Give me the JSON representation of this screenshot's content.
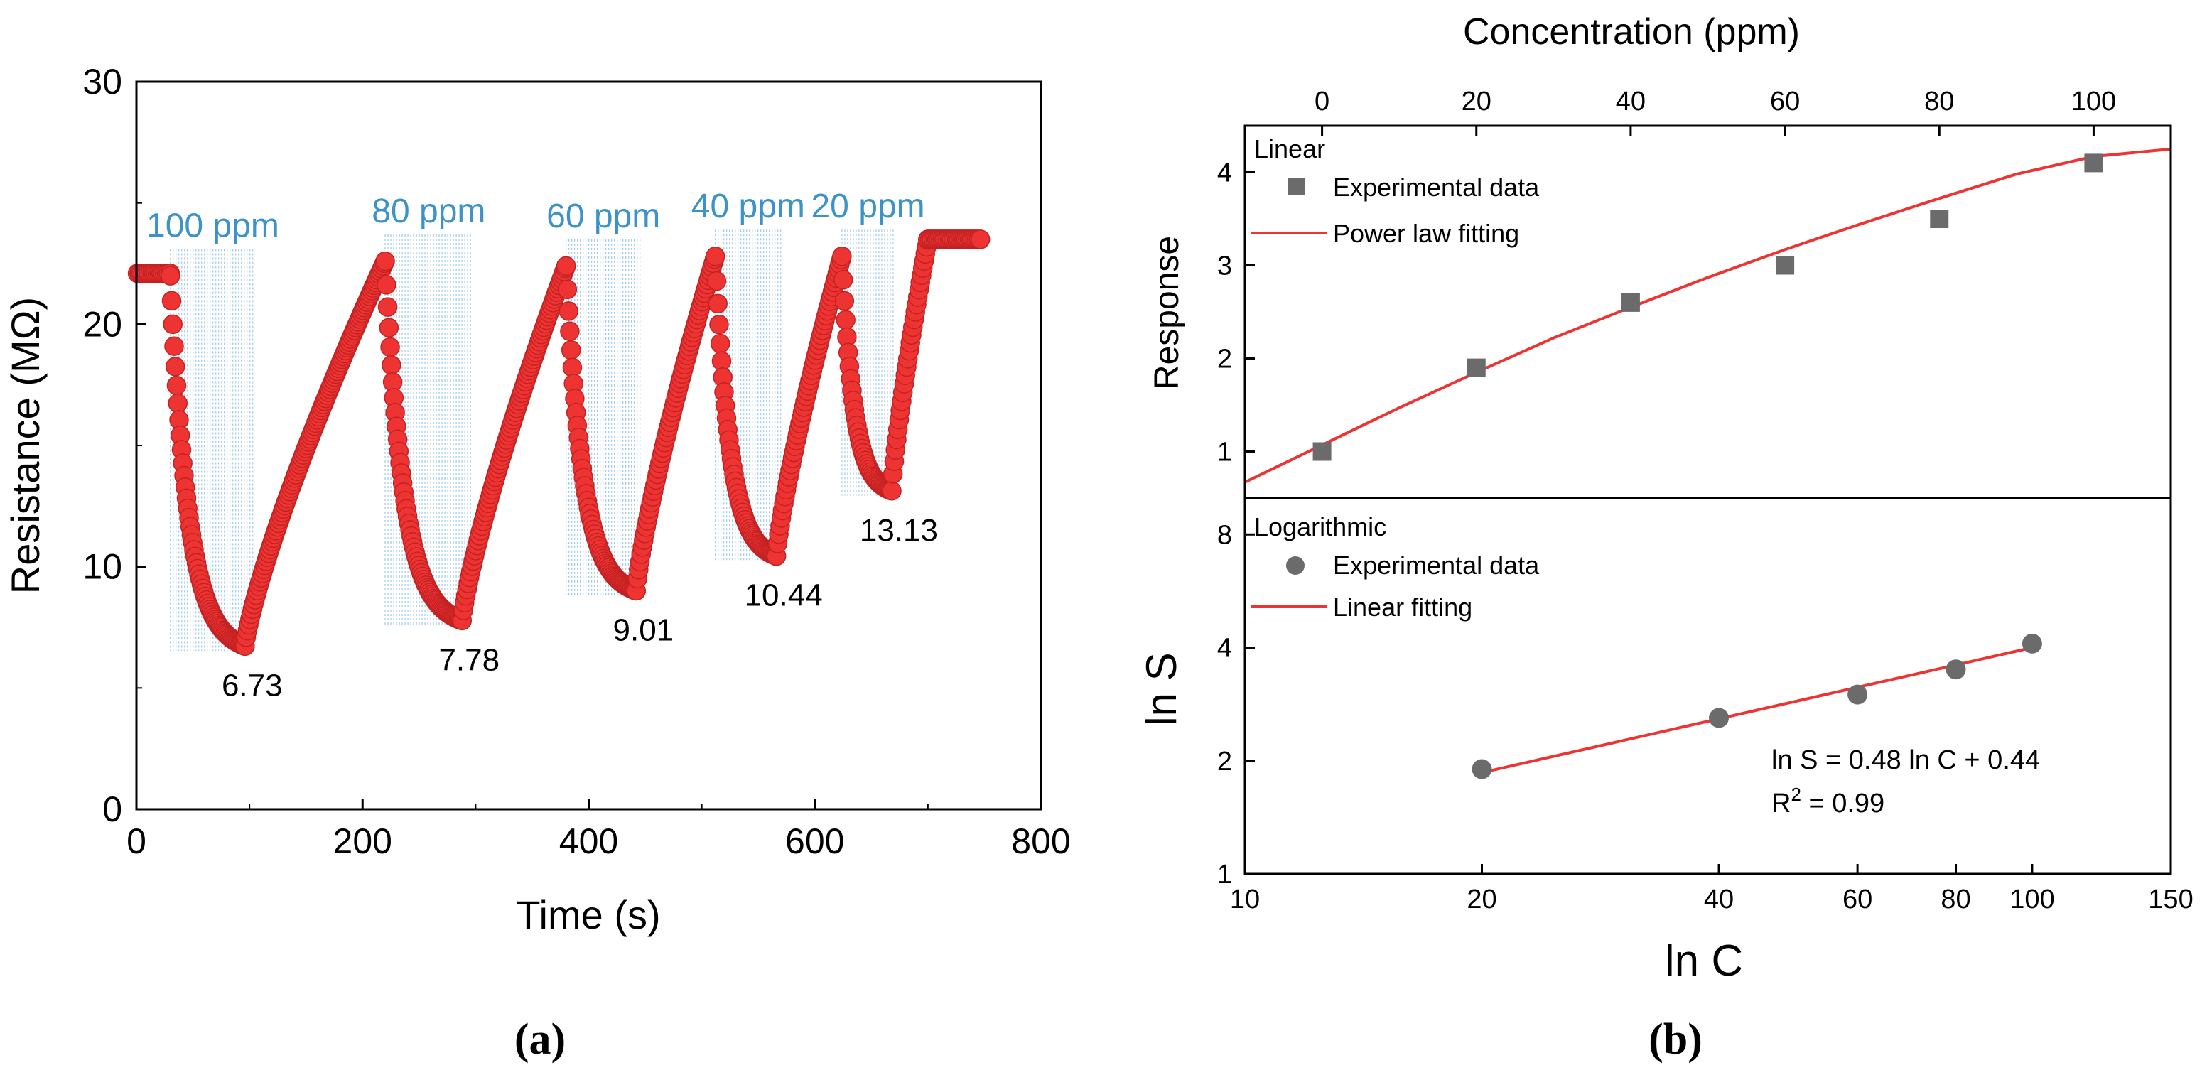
{
  "colors": {
    "curve": "#ee3333",
    "curve_edge": "#c42222",
    "shade": "#9cc8ea",
    "label_blue": "#3d93c8",
    "square": "#6b6b6b",
    "fit_line": "#ee3333",
    "axis": "#000000"
  },
  "panel_a": {
    "caption": "(a)",
    "chart_data": {
      "type": "scatter",
      "title": "",
      "xlabel": "Time (s)",
      "ylabel": "Resistance (MΩ)",
      "xlim": [
        0,
        800
      ],
      "ylim": [
        0,
        30
      ],
      "x_ticks": [
        "0",
        "200",
        "400",
        "600",
        "800"
      ],
      "y_ticks": [
        "0",
        "10",
        "20",
        "30"
      ],
      "cycles": [
        {
          "label": "100 ppm",
          "on": 30,
          "off": 105,
          "on_value": 22.0,
          "min": 6.73,
          "min_time": 96,
          "peak_time": 220,
          "peak_value": 22.6,
          "min_label": "6.73"
        },
        {
          "label": "80 ppm",
          "on": 220,
          "off": 297,
          "on_value": 22.6,
          "min": 7.78,
          "min_time": 288,
          "peak_time": 380,
          "peak_value": 22.4,
          "min_label": "7.78"
        },
        {
          "label": "60 ppm",
          "on": 380,
          "off": 446,
          "on_value": 22.4,
          "min": 9.01,
          "min_time": 442,
          "peak_time": 512,
          "peak_value": 22.8,
          "min_label": "9.01"
        },
        {
          "label": "40 ppm",
          "on": 512,
          "off": 570,
          "on_value": 22.8,
          "min": 10.44,
          "min_time": 566,
          "peak_time": 624,
          "peak_value": 22.8,
          "min_label": "10.44"
        },
        {
          "label": "20 ppm",
          "on": 624,
          "off": 670,
          "on_value": 22.8,
          "min": 13.13,
          "min_time": 668,
          "peak_time": 700,
          "peak_value": 23.5,
          "min_label": "13.13"
        }
      ],
      "baseline_start": {
        "x0": 0,
        "x1": 30,
        "y": 22.1
      },
      "baseline_end": {
        "x0": 700,
        "x1": 748,
        "y": 23.5
      }
    }
  },
  "panel_b": {
    "caption": "(b)",
    "top": {
      "chart_data": {
        "type": "scatter",
        "xlabel": "Concentration (ppm)",
        "ylabel": "Response",
        "xlim": [
          -10,
          110
        ],
        "ylim": [
          0.5,
          4.5
        ],
        "x_ticks": [
          "0",
          "20",
          "40",
          "60",
          "80",
          "100"
        ],
        "y_ticks": [
          "1",
          "2",
          "3",
          "4"
        ],
        "panel_label": "Linear",
        "legend": [
          "Experimental data",
          "Power law fitting"
        ],
        "x": [
          0,
          20,
          40,
          60,
          80,
          100
        ],
        "values": [
          1.0,
          1.9,
          2.6,
          3.0,
          3.5,
          4.1
        ],
        "fit_points": [
          [
            -10,
            0.67
          ],
          [
            0,
            1.07
          ],
          [
            10,
            1.47
          ],
          [
            20,
            1.85
          ],
          [
            30,
            2.22
          ],
          [
            40,
            2.55
          ],
          [
            50,
            2.87
          ],
          [
            60,
            3.17
          ],
          [
            70,
            3.45
          ],
          [
            80,
            3.72
          ],
          [
            90,
            3.98
          ],
          [
            100,
            4.17
          ],
          [
            110,
            4.25
          ]
        ]
      }
    },
    "bottom": {
      "chart_data": {
        "type": "scatter",
        "xlabel": "ln C",
        "ylabel": "ln S",
        "xscale": "log",
        "xlim": [
          10,
          150
        ],
        "ylim": [
          1,
          10
        ],
        "x_ticks": [
          "10",
          "20",
          "40",
          "60",
          "80",
          "100",
          "150"
        ],
        "y_ticks": [
          "1",
          "2",
          "4",
          "8"
        ],
        "panel_label": "Logarithmic",
        "legend": [
          "Experimental data",
          "Linear fitting"
        ],
        "x": [
          20,
          40,
          60,
          80,
          100
        ],
        "values": [
          1.9,
          2.6,
          3.0,
          3.5,
          4.1
        ],
        "fit_points": [
          [
            20,
            1.86
          ],
          [
            100,
            4.0
          ]
        ],
        "annotation_line1": "ln S = 0.48 ln C + 0.44",
        "annotation_r2_prefix": "R",
        "annotation_r2_sup": "2",
        "annotation_r2_suffix": " = 0.99"
      }
    }
  }
}
